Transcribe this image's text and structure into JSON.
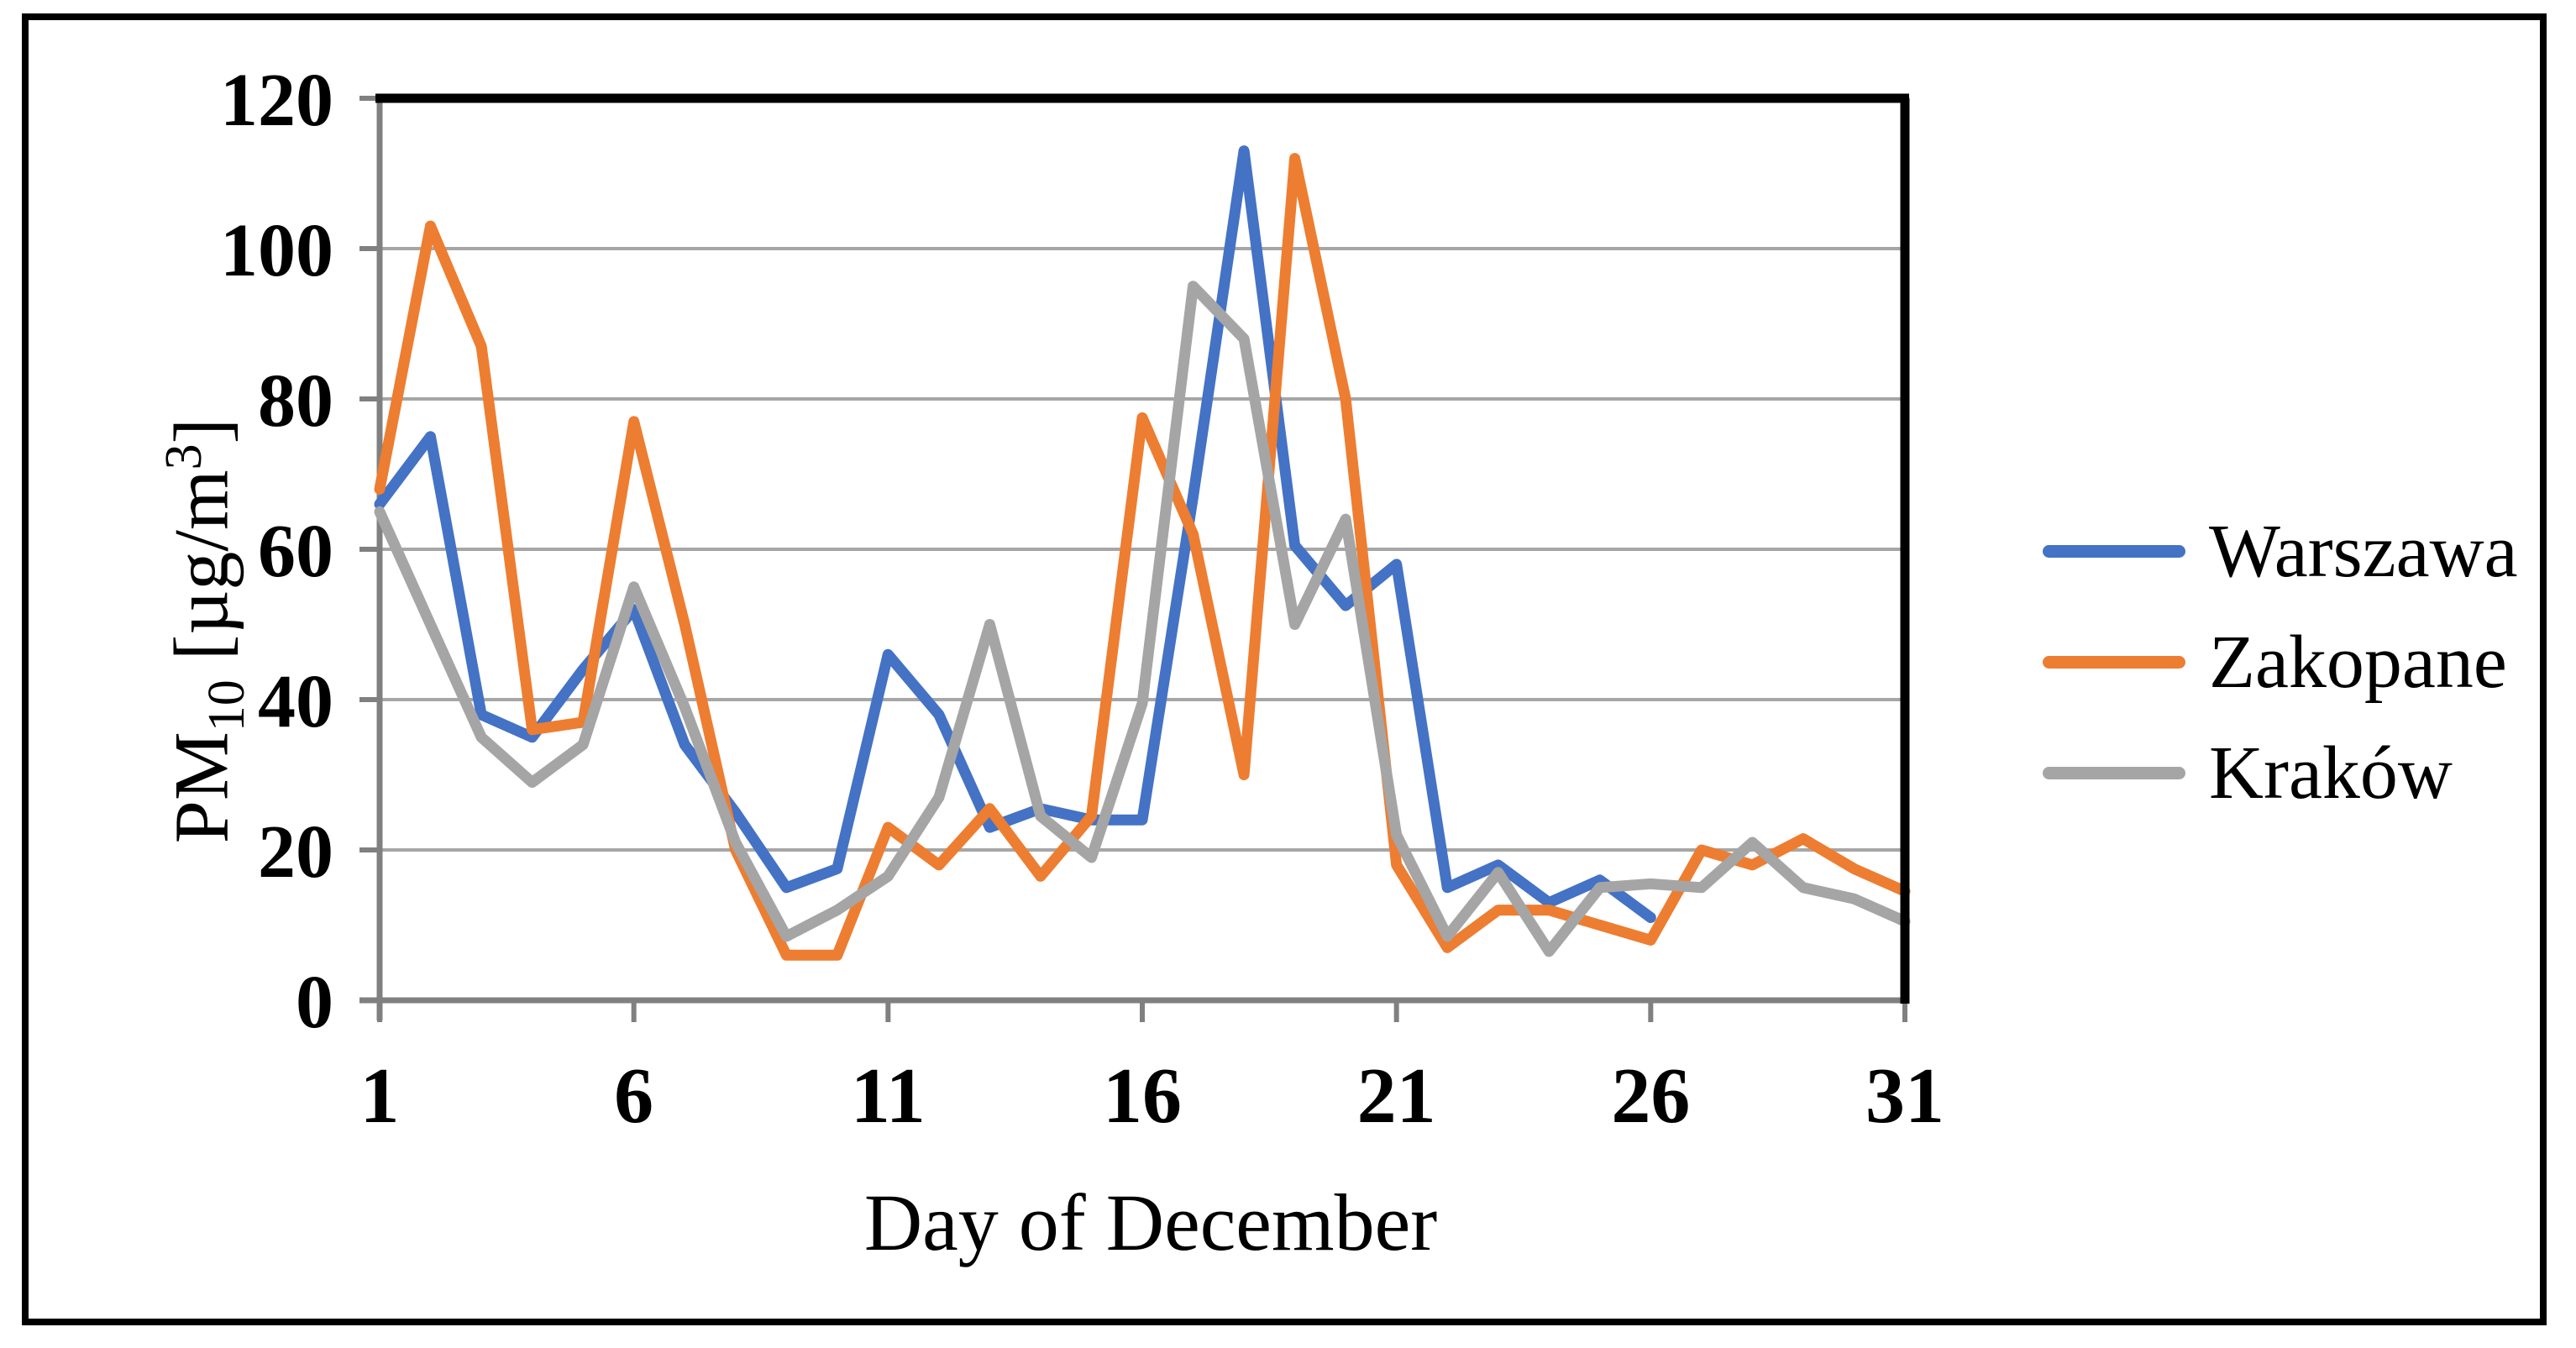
{
  "figure": {
    "kind": "excel-style line chart of daily PM10 concentrations in three Polish cities"
  },
  "x_axis": {
    "title": "Day of December",
    "tick_labels": [
      "1",
      "6",
      "11",
      "16",
      "21",
      "26",
      "31"
    ]
  },
  "y_axis": {
    "title_parts": {
      "pre": "PM",
      "sub": "10",
      "mid": "  [µg/m",
      "sup": "3",
      "post": "]"
    },
    "tick_labels": [
      "0",
      "20",
      "40",
      "60",
      "80",
      "100",
      "120"
    ]
  },
  "colors": {
    "warszawa": "#4472C4",
    "zakopane": "#ED7D31",
    "krakow": "#A5A5A5",
    "gridline": "#A6A6A6",
    "axis_line": "#808080",
    "plot_border": "#000000"
  },
  "chart_data": {
    "type": "line",
    "title": "",
    "xlabel": "Day of December",
    "ylabel": "PM10 [µg/m3]",
    "xlim": [
      1,
      31
    ],
    "ylim": [
      0,
      120
    ],
    "grid": "horizontal",
    "legend_position": "right",
    "x": [
      1,
      2,
      3,
      4,
      5,
      6,
      7,
      8,
      9,
      10,
      11,
      12,
      13,
      14,
      15,
      16,
      17,
      18,
      19,
      20,
      21,
      22,
      23,
      24,
      25,
      26,
      27,
      28,
      29,
      30,
      31
    ],
    "x_ticks": [
      1,
      6,
      11,
      16,
      21,
      26,
      31
    ],
    "y_ticks": [
      0,
      20,
      40,
      60,
      80,
      100,
      120
    ],
    "series": [
      {
        "name": "Warszawa",
        "color": "#4472C4",
        "values": [
          66,
          75,
          38,
          35,
          44,
          52,
          34,
          25,
          15,
          17.5,
          46,
          38,
          23,
          25.5,
          24,
          24,
          67,
          113,
          60.5,
          52.5,
          58,
          15,
          18,
          13,
          16,
          11,
          null,
          null,
          null,
          null,
          null
        ]
      },
      {
        "name": "Zakopane",
        "color": "#ED7D31",
        "values": [
          68,
          103,
          87,
          36,
          37,
          77,
          50,
          20,
          6,
          6,
          23,
          18,
          25.5,
          16.5,
          24.5,
          77.5,
          62,
          30,
          112,
          80,
          18,
          7,
          12,
          12,
          10,
          8,
          20,
          18,
          21.5,
          17.5,
          14.5
        ]
      },
      {
        "name": "Kraków",
        "color": "#A5A5A5",
        "values": [
          65,
          50,
          35,
          29,
          34,
          55,
          39,
          21,
          8.5,
          12,
          16.5,
          27,
          50,
          24.5,
          19,
          39.5,
          95,
          88,
          50,
          64,
          22,
          8.5,
          17,
          6.5,
          15,
          15.5,
          15,
          21,
          15,
          13.5,
          10.5
        ]
      }
    ]
  }
}
